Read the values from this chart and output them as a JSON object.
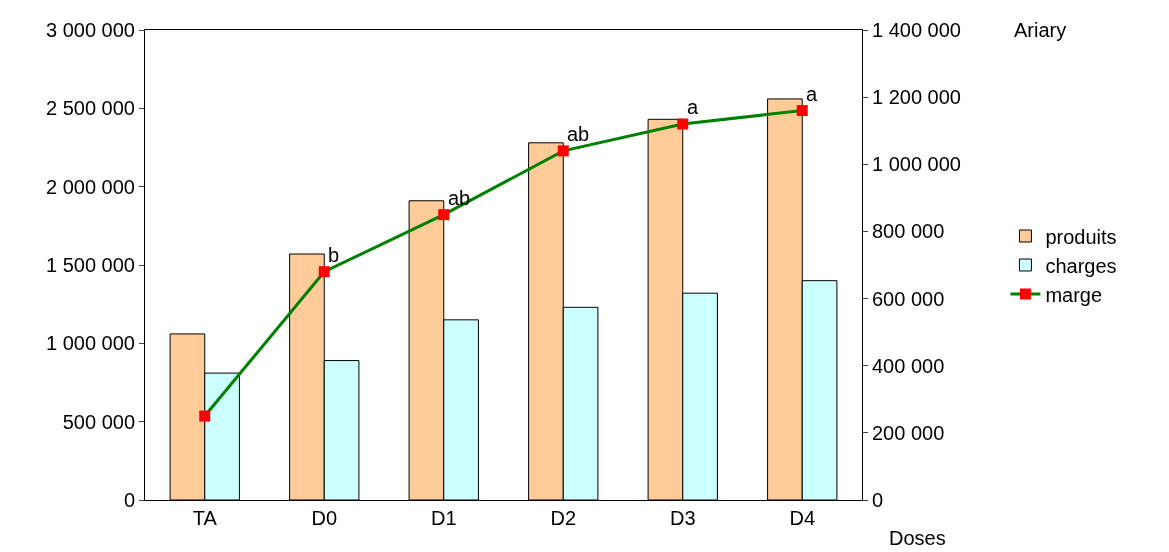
{
  "chart_data": {
    "type": "bar",
    "categories": [
      "TA",
      "D0",
      "D1",
      "D2",
      "D3",
      "D4"
    ],
    "xlabel": "Doses",
    "series": [
      {
        "name": "produits",
        "color": "#ffcc99",
        "values": [
          1060000,
          1570000,
          1910000,
          2280000,
          2430000,
          2560000
        ]
      },
      {
        "name": "charges",
        "color": "#ccffff",
        "values": [
          810000,
          890000,
          1150000,
          1230000,
          1320000,
          1400000
        ]
      },
      {
        "name": "marge",
        "type": "line",
        "axis": "y2",
        "color": "#008000",
        "colors": [
          "#ff0000",
          "#ff0000",
          "#ff0000",
          "#ff0000",
          "#ff0000",
          "#ff0000"
        ],
        "marker": "square",
        "values": [
          250000,
          680000,
          850000,
          1040000,
          1120000,
          1160000
        ]
      }
    ],
    "ylim": [
      0,
      3000000
    ],
    "yticks": [
      {
        "value": 0,
        "label": "0"
      },
      {
        "value": 500000,
        "label": "500 000"
      },
      {
        "value": 1000000,
        "label": "1 000 000"
      },
      {
        "value": 1500000,
        "label": "1 500 000"
      },
      {
        "value": 2000000,
        "label": "2 000 000"
      },
      {
        "value": 2500000,
        "label": "2 500 000"
      },
      {
        "value": 3000000,
        "label": "3 000 000"
      }
    ],
    "y2lim": [
      0,
      1400000
    ],
    "y2ticks": [
      {
        "value": 0,
        "label": "0"
      },
      {
        "value": 200000,
        "label": "200 000"
      },
      {
        "value": 400000,
        "label": "400 000"
      },
      {
        "value": 600000,
        "label": "600 000"
      },
      {
        "value": 800000,
        "label": "800 000"
      },
      {
        "value": 1000000,
        "label": "1 000 000"
      },
      {
        "value": 1200000,
        "label": "1 200 000"
      },
      {
        "value": 1400000,
        "label": "1 400 000"
      }
    ],
    "annotations": [
      "Ariary",
      "b",
      "ab",
      "ab",
      "a",
      "a"
    ],
    "legend": "right"
  }
}
